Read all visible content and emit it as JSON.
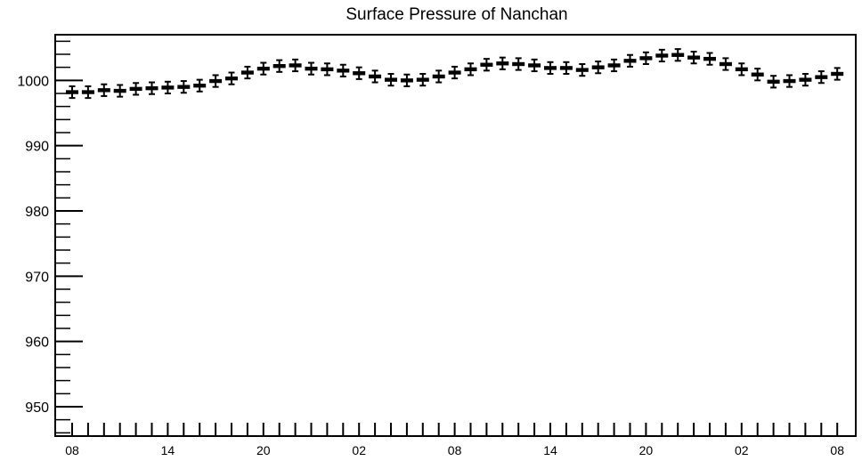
{
  "chart_data": {
    "type": "scatter",
    "title": "Surface Pressure of Nanchan",
    "xlabel": "",
    "ylabel": "",
    "ylim": [
      945.5,
      1007
    ],
    "yticks_major": [
      950,
      960,
      970,
      980,
      990,
      1000
    ],
    "yticks_minor_step": 2,
    "x_tick_labels": [
      "08",
      "14",
      "20",
      "02",
      "08",
      "14",
      "20",
      "02",
      "08"
    ],
    "x_tick_label_indices": [
      0,
      6,
      12,
      18,
      24,
      30,
      36,
      42,
      48
    ],
    "x_minor_tick_count": 49,
    "grid": false,
    "legend": "none",
    "marker_color": "#000000",
    "series": [
      {
        "values": [
          998.2,
          998.2,
          998.5,
          998.4,
          998.7,
          998.8,
          998.9,
          999.0,
          999.2,
          999.9,
          1000.3,
          1001.2,
          1001.8,
          1002.2,
          1002.3,
          1001.8,
          1001.7,
          1001.5,
          1001.1,
          1000.6,
          1000.1,
          1000.0,
          1000.1,
          1000.6,
          1001.2,
          1001.7,
          1002.4,
          1002.6,
          1002.5,
          1002.3,
          1001.9,
          1001.9,
          1001.6,
          1002.0,
          1002.3,
          1003.0,
          1003.4,
          1003.8,
          1003.9,
          1003.5,
          1003.3,
          1002.5,
          1001.7,
          1000.9,
          999.8,
          999.9,
          1000.1,
          1000.5,
          1001.0
        ],
        "errors": [
          0.9,
          0.9,
          0.9,
          0.9,
          0.9,
          0.9,
          0.9,
          0.9,
          0.9,
          0.9,
          0.9,
          0.9,
          0.9,
          0.9,
          0.9,
          0.9,
          0.9,
          0.9,
          0.9,
          0.9,
          0.9,
          0.9,
          0.9,
          0.9,
          0.9,
          0.9,
          0.9,
          0.9,
          0.9,
          0.9,
          0.9,
          0.9,
          0.9,
          0.9,
          0.9,
          0.9,
          0.9,
          0.9,
          0.9,
          0.9,
          0.9,
          0.9,
          0.9,
          0.9,
          0.9,
          0.9,
          0.9,
          0.9,
          0.9
        ]
      }
    ]
  }
}
